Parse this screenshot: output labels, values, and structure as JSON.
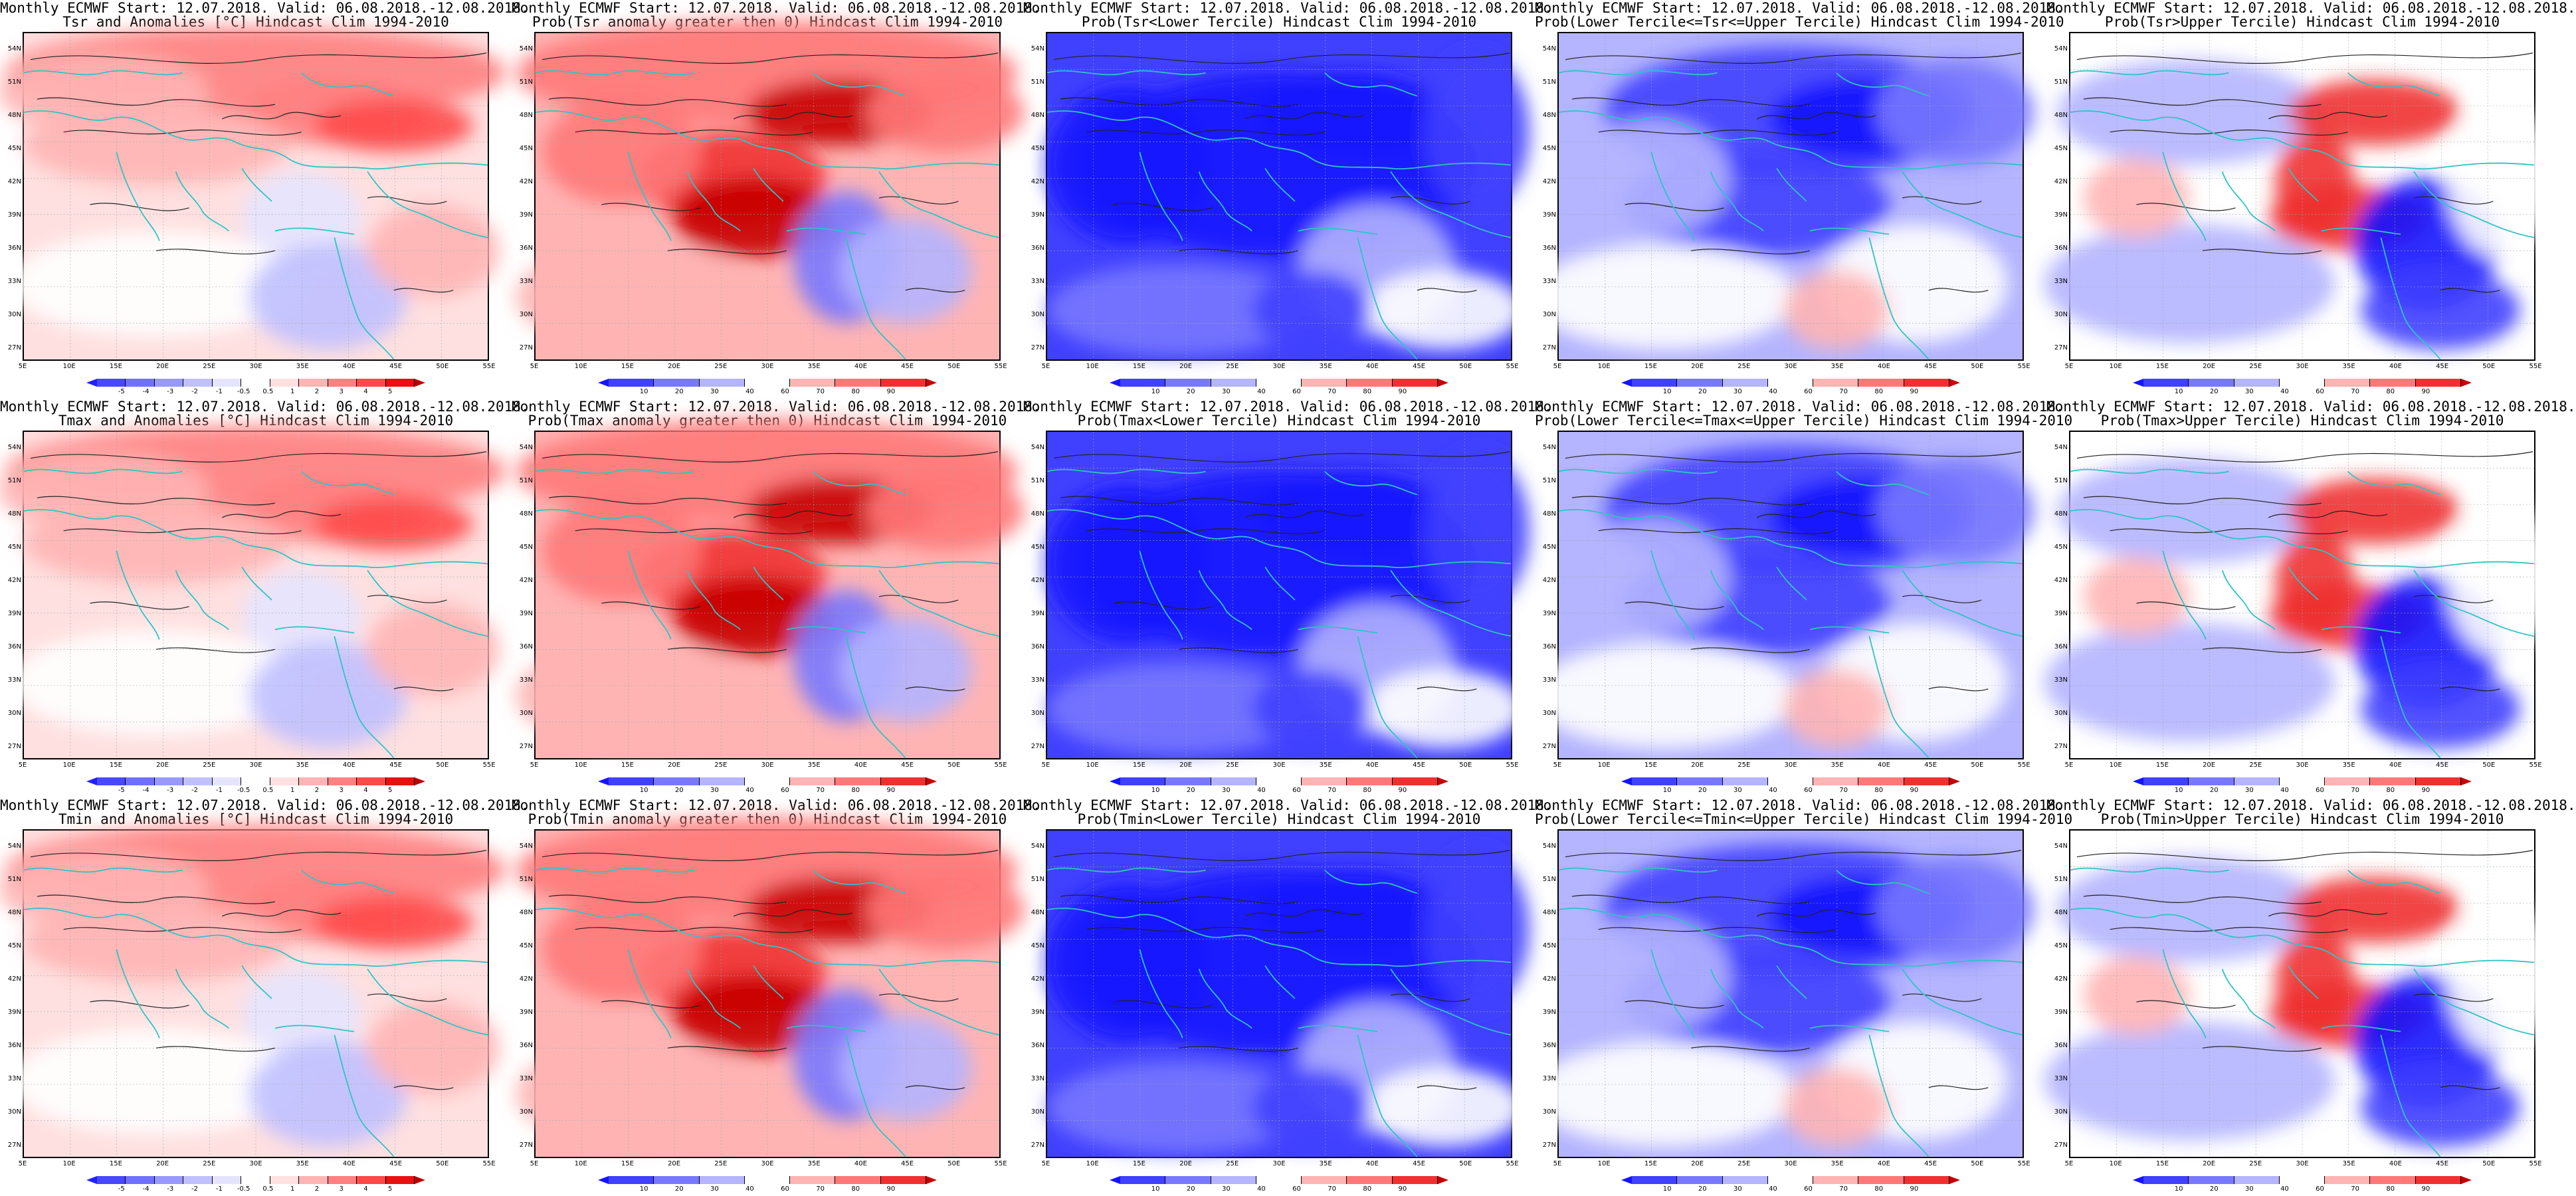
{
  "common_title": "Monthly ECMWF Start: 12.07.2018. Valid: 06.08.2018.-12.08.2018.",
  "lat_labels": [
    "54N",
    "51N",
    "48N",
    "45N",
    "42N",
    "39N",
    "36N",
    "33N",
    "30N",
    "27N"
  ],
  "lon_labels": [
    "5E",
    "10E",
    "15E",
    "20E",
    "25E",
    "30E",
    "35E",
    "40E",
    "45E",
    "50E",
    "55E"
  ],
  "colorbars": {
    "anomaly": {
      "labels": [
        "-5",
        "-4",
        "-3",
        "-2",
        "-1",
        "-0.5",
        "0.5",
        "1",
        "2",
        "3",
        "4",
        "5"
      ],
      "colors": [
        "#2020ff",
        "#4848ff",
        "#7070ff",
        "#9898ff",
        "#c0c0ff",
        "#e4e4ff",
        "#ffffff",
        "#ffe0e0",
        "#ffb4b4",
        "#ff8080",
        "#ff4848",
        "#e81010",
        "#c00000"
      ]
    },
    "probability": {
      "labels": [
        "10",
        "20",
        "30",
        "40",
        "60",
        "70",
        "80",
        "90"
      ],
      "colors": [
        "#1414ff",
        "#4040ff",
        "#7878ff",
        "#b4b4ff",
        "#ffffff",
        "#ffb4b4",
        "#ff7878",
        "#f03030",
        "#c80000"
      ]
    }
  },
  "panels": [
    {
      "id": "tsr-anom",
      "l2": "Tsr and Anomalies [°C] Hindcast Clim 1994-2010",
      "cbar": "anomaly",
      "scheme": "anom-warm"
    },
    {
      "id": "tsr-prob-pos",
      "l2": "Prob(Tsr anomaly greater then 0) Hindcast Clim 1994-2010",
      "cbar": "probability",
      "scheme": "prob-red"
    },
    {
      "id": "tsr-prob-lower",
      "l2": "Prob(Tsr<Lower Tercile) Hindcast Clim 1994-2010",
      "cbar": "probability",
      "scheme": "prob-blue"
    },
    {
      "id": "tsr-prob-mid",
      "l2": "Prob(Lower Tercile<=Tsr<=Upper Tercile) Hindcast Clim 1994-2010",
      "cbar": "probability",
      "scheme": "prob-mid"
    },
    {
      "id": "tsr-prob-upper",
      "l2": "Prob(Tsr>Upper Tercile) Hindcast Clim 1994-2010",
      "cbar": "probability",
      "scheme": "prob-upper"
    },
    {
      "id": "tmax-anom",
      "l2": "Tmax and Anomalies [°C] Hindcast Clim 1994-2010",
      "cbar": "anomaly",
      "scheme": "anom-warm"
    },
    {
      "id": "tmax-prob-pos",
      "l2": "Prob(Tmax anomaly greater then 0) Hindcast Clim 1994-2010",
      "cbar": "probability",
      "scheme": "prob-red"
    },
    {
      "id": "tmax-prob-lower",
      "l2": "Prob(Tmax<Lower Tercile) Hindcast Clim 1994-2010",
      "cbar": "probability",
      "scheme": "prob-blue"
    },
    {
      "id": "tmax-prob-mid",
      "l2": "Prob(Lower Tercile<=Tmax<=Upper Tercile) Hindcast Clim 1994-2010",
      "cbar": "probability",
      "scheme": "prob-mid"
    },
    {
      "id": "tmax-prob-upper",
      "l2": "Prob(Tmax>Upper Tercile) Hindcast Clim 1994-2010",
      "cbar": "probability",
      "scheme": "prob-upper"
    },
    {
      "id": "tmin-anom",
      "l2": "Tmin and Anomalies [°C] Hindcast Clim 1994-2010",
      "cbar": "anomaly",
      "scheme": "anom-warm"
    },
    {
      "id": "tmin-prob-pos",
      "l2": "Prob(Tmin anomaly greater then 0) Hindcast Clim 1994-2010",
      "cbar": "probability",
      "scheme": "prob-red"
    },
    {
      "id": "tmin-prob-lower",
      "l2": "Prob(Tmin<Lower Tercile) Hindcast Clim 1994-2010",
      "cbar": "probability",
      "scheme": "prob-blue"
    },
    {
      "id": "tmin-prob-mid",
      "l2": "Prob(Lower Tercile<=Tmin<=Upper Tercile) Hindcast Clim 1994-2010",
      "cbar": "probability",
      "scheme": "prob-mid"
    },
    {
      "id": "tmin-prob-upper",
      "l2": "Prob(Tmin>Upper Tercile) Hindcast Clim 1994-2010",
      "cbar": "probability",
      "scheme": "prob-upper"
    }
  ],
  "colors": {
    "coastline": "#2ec4c4",
    "contour": "#222222"
  }
}
